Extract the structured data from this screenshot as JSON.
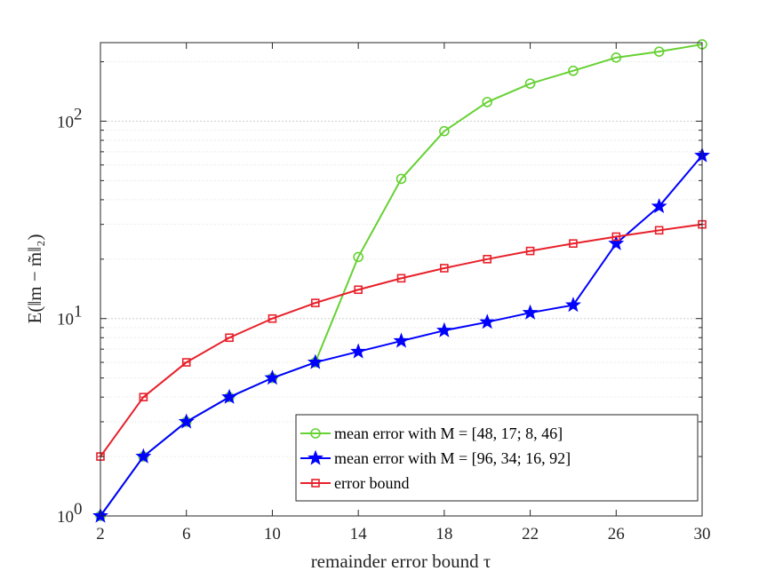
{
  "chart_data": {
    "type": "line",
    "y_scale": "log",
    "grid": "horizontal, major and minor (dotted)",
    "legend_position": "lower-right",
    "x": [
      2,
      4,
      6,
      8,
      10,
      12,
      14,
      16,
      18,
      20,
      22,
      24,
      26,
      28,
      30
    ],
    "xlim": [
      2,
      30
    ],
    "ylim": [
      1,
      250
    ],
    "xticks": [
      2,
      6,
      10,
      14,
      18,
      22,
      26,
      30
    ],
    "xtick_labels": [
      "2",
      "6",
      "10",
      "14",
      "18",
      "22",
      "26",
      "30"
    ],
    "yticks": [
      1,
      10,
      100
    ],
    "ytick_labels": [
      {
        "base": "10",
        "exp": "0"
      },
      {
        "base": "10",
        "exp": "1"
      },
      {
        "base": "10",
        "exp": "2"
      }
    ],
    "xlabel": "remainder error bound τ",
    "ylabel": "E(‖m − m̃‖₂)",
    "series": [
      {
        "name": "mean error with M = [48, 17; 8, 46]",
        "color": "#66d133",
        "marker": "circle",
        "values": [
          1,
          2,
          3,
          4,
          5,
          6,
          20.5,
          51,
          89,
          125,
          155,
          180,
          210,
          225,
          245
        ]
      },
      {
        "name": "mean error with M = [96, 34; 16, 92]",
        "color": "#0000ff",
        "marker": "star",
        "values": [
          1,
          2,
          3,
          4,
          5,
          6,
          6.8,
          7.7,
          8.7,
          9.6,
          10.7,
          11.7,
          24,
          37,
          67
        ]
      },
      {
        "name": "error bound",
        "color": "#e8202a",
        "marker": "square",
        "values": [
          2,
          4,
          6,
          8,
          10,
          12,
          14,
          16,
          18,
          20,
          22,
          24,
          26,
          28,
          30
        ]
      }
    ]
  }
}
